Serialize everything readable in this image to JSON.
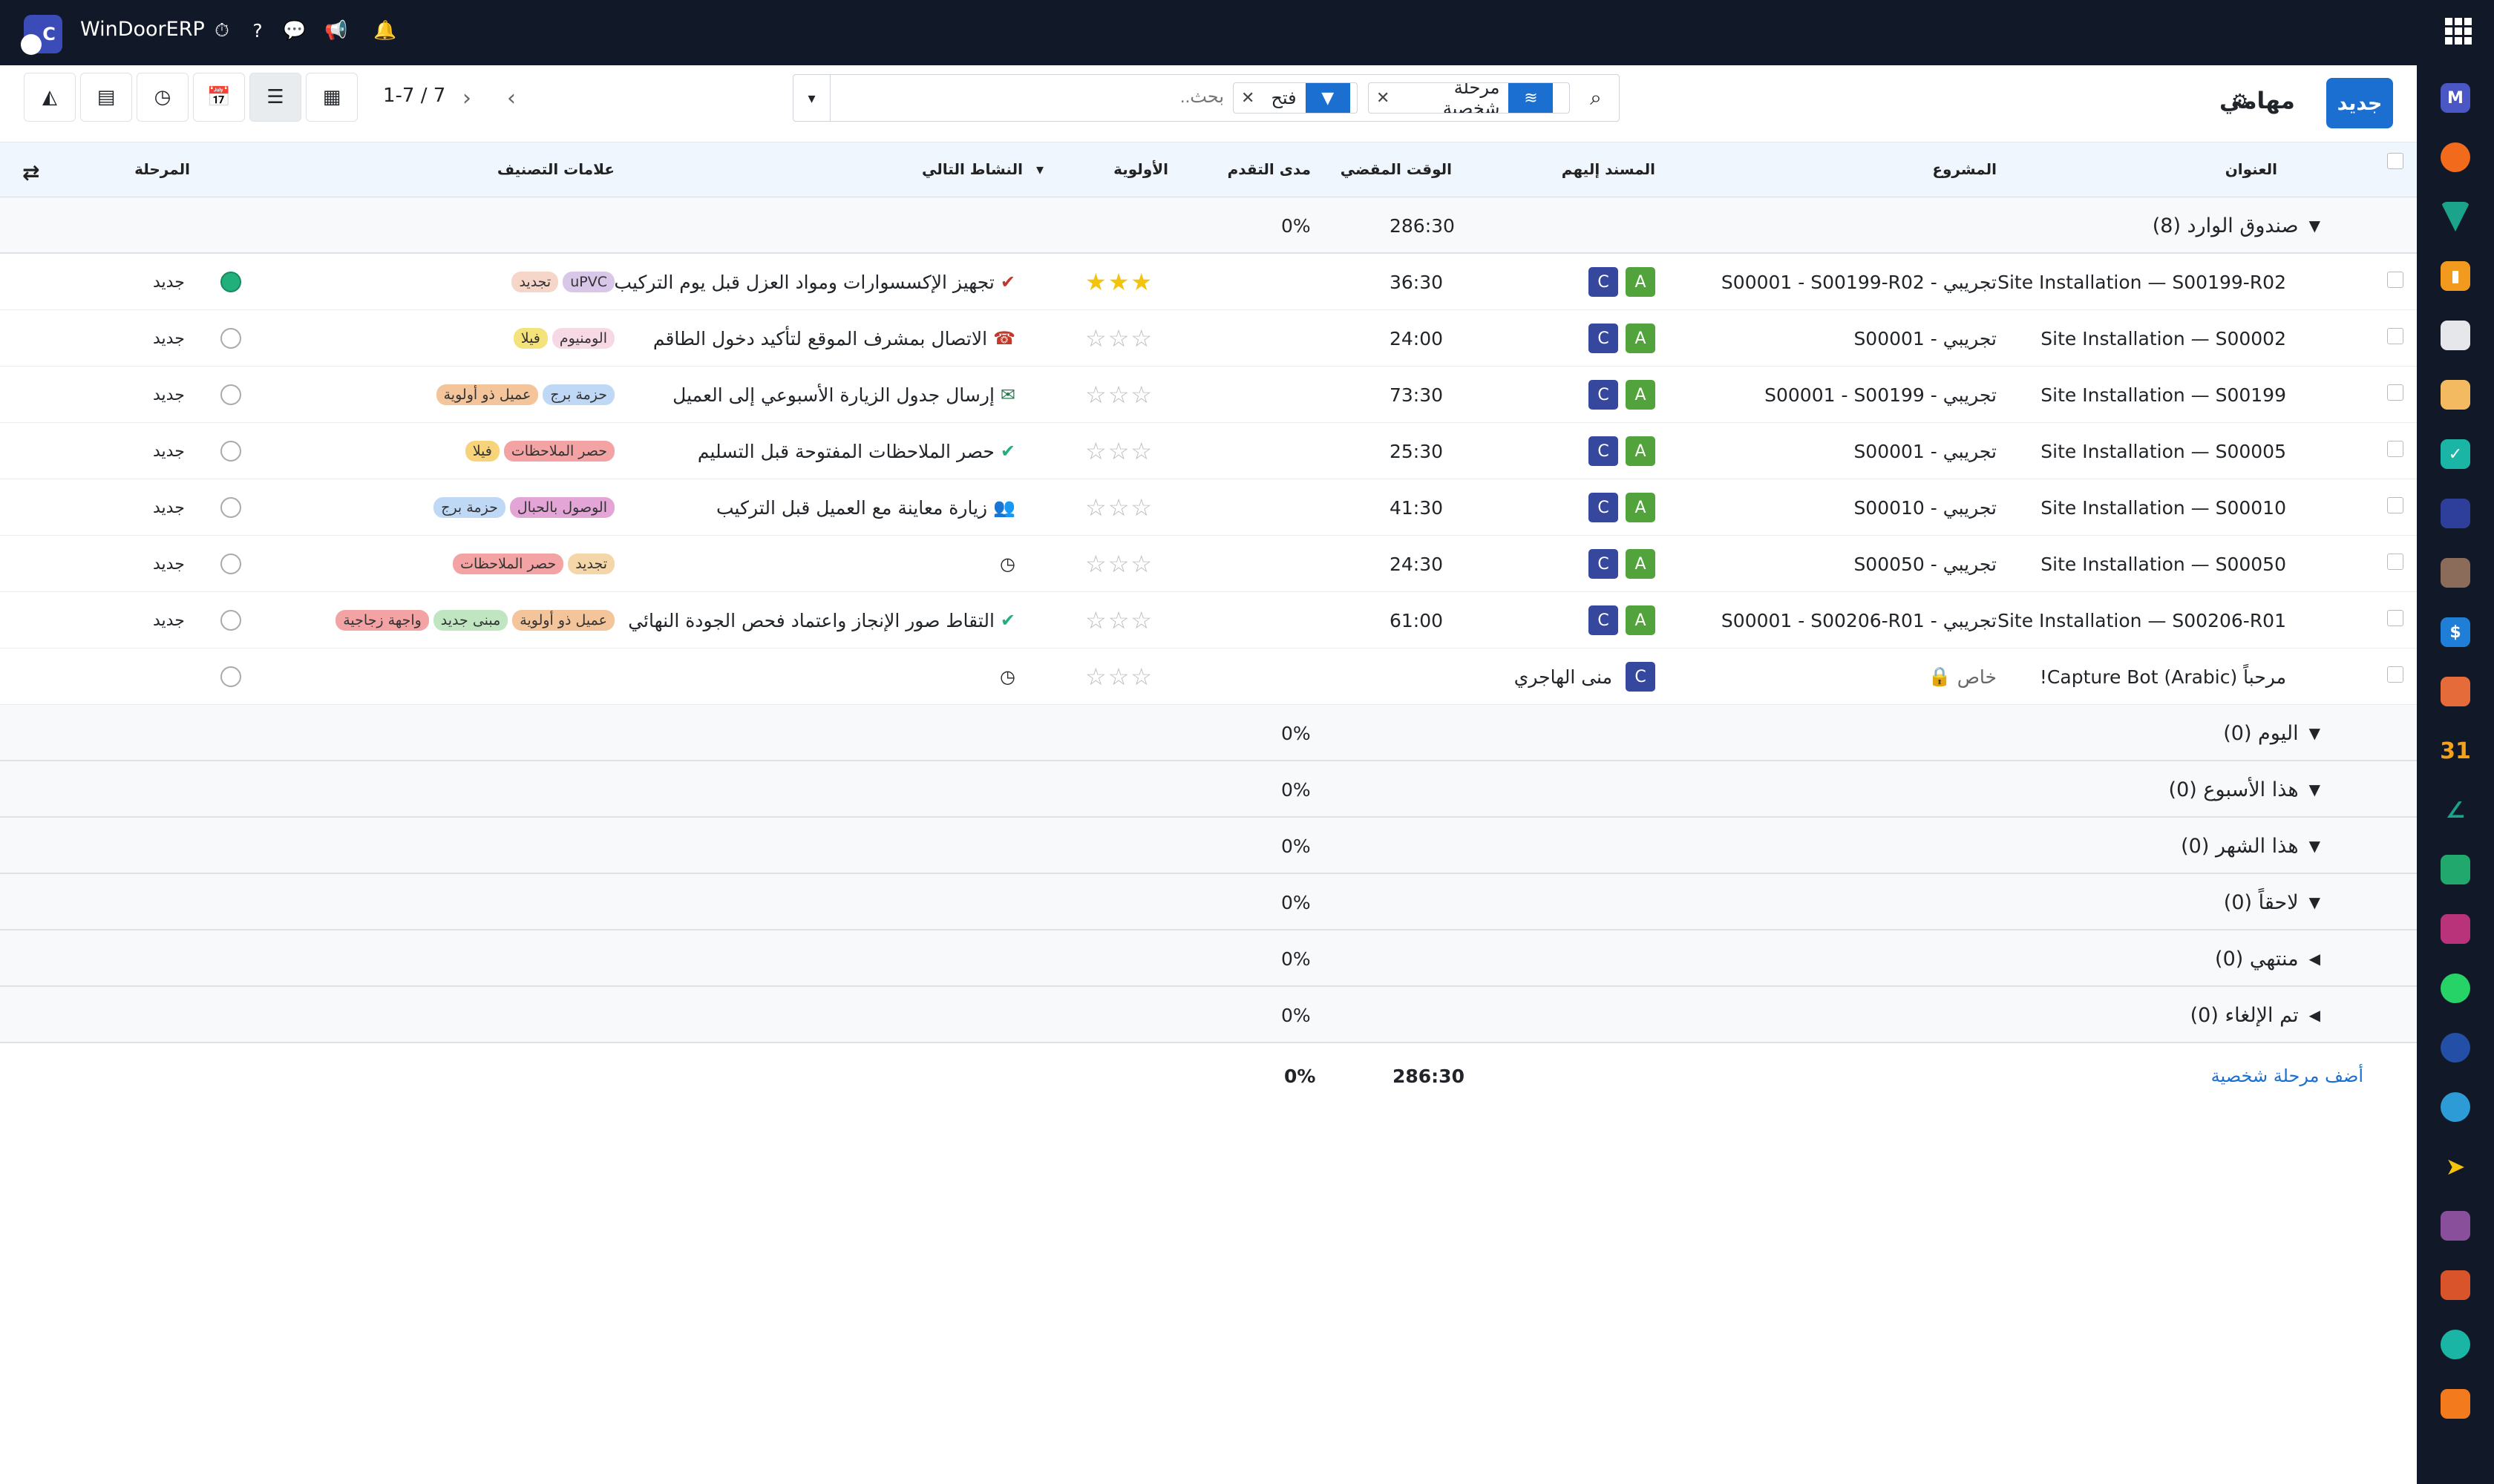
{
  "topbar": {
    "brand": "WinDoorERP",
    "logo_letter": "C"
  },
  "control": {
    "new_button": "جديد",
    "title": "مهامي",
    "facets": [
      {
        "label": "مرحلة شخصية",
        "icon": "layers-icon",
        "color": "#1b6fd1"
      },
      {
        "label": "فتح",
        "icon": "filter-icon",
        "color": "#1b6fd1"
      }
    ],
    "search_placeholder": "بحث...",
    "pager": "1-7 / 7"
  },
  "headers": {
    "title": "العنوان",
    "project": "المشروع",
    "assignees": "المسند إليهم",
    "time": "الوقت المقضي",
    "progress": "مدى التقدم",
    "priority": "الأولوية",
    "next_activity": "النشاط التالي",
    "tags": "علامات التصنيف",
    "stage": "المرحلة"
  },
  "groups": [
    {
      "label": "صندوق الوارد (8)",
      "progress": "0%",
      "time": "286:30",
      "open": true
    },
    {
      "label": "اليوم (0)",
      "progress": "0%"
    },
    {
      "label": "هذا الأسبوع (0)",
      "progress": "0%"
    },
    {
      "label": "هذا الشهر (0)",
      "progress": "0%"
    },
    {
      "label": "لاحقاً (0)",
      "progress": "0%"
    },
    {
      "label": "منتهي (0)",
      "progress": "0%"
    },
    {
      "label": "تم الإلغاء (0)",
      "progress": "0%"
    }
  ],
  "rows": [
    {
      "title": "Site Installation — S00199-R02",
      "project": "تجريبي - S00001 - S00199-R02",
      "time": "36:30",
      "stars": 3,
      "activity": "تجهيز الإكسسوارات ومواد العزل قبل يوم التركيب",
      "act_icon": "check-icon-red",
      "tags": [
        {
          "t": "uPVC",
          "c": "#d9c7ea"
        },
        {
          "t": "تجديد",
          "c": "#f5d6c9"
        }
      ],
      "stage": "جديد",
      "status": "green"
    },
    {
      "title": "Site Installation — S00002",
      "project": "تجريبي - S00001",
      "time": "24:00",
      "stars": 0,
      "activity": "الاتصال بمشرف الموقع لتأكيد دخول الطاقم",
      "act_icon": "phone-icon",
      "tags": [
        {
          "t": "الومنيوم",
          "c": "#f7d9e6"
        },
        {
          "t": "فيلا",
          "c": "#f4e27a"
        }
      ],
      "stage": "جديد",
      "status": "grey"
    },
    {
      "title": "Site Installation — S00199",
      "project": "تجريبي - S00001 - S00199",
      "time": "73:30",
      "stars": 0,
      "activity": "إرسال جدول الزيارة الأسبوعي إلى العميل",
      "act_icon": "envelope-icon",
      "tags": [
        {
          "t": "حزمة برج",
          "c": "#bfd8f6"
        },
        {
          "t": "عميل ذو أولوية",
          "c": "#f4c49a"
        }
      ],
      "stage": "جديد",
      "status": "grey"
    },
    {
      "title": "Site Installation — S00005",
      "project": "تجريبي - S00001",
      "time": "25:30",
      "stars": 0,
      "activity": "حصر الملاحظات المفتوحة قبل التسليم",
      "act_icon": "check-icon",
      "tags": [
        {
          "t": "حصر الملاحظات",
          "c": "#f3a3a3"
        },
        {
          "t": "فيلا",
          "c": "#f7d37a"
        }
      ],
      "stage": "جديد",
      "status": "grey"
    },
    {
      "title": "Site Installation — S00010",
      "project": "تجريبي - S00010",
      "time": "41:30",
      "stars": 0,
      "activity": "زيارة معاينة مع العميل قبل التركيب",
      "act_icon": "users-icon",
      "tags": [
        {
          "t": "الوصول بالحبال",
          "c": "#e3a4d6"
        },
        {
          "t": "حزمة برج",
          "c": "#bfd8f6"
        }
      ],
      "stage": "جديد",
      "status": "grey"
    },
    {
      "title": "Site Installation — S00050",
      "project": "تجريبي - S00050",
      "time": "24:30",
      "stars": 0,
      "activity": "",
      "act_icon": "clock-icon",
      "tags": [
        {
          "t": "تجديد",
          "c": "#f5d6a8"
        },
        {
          "t": "حصر الملاحظات",
          "c": "#f3a3a3"
        }
      ],
      "stage": "جديد",
      "status": "grey"
    },
    {
      "title": "Site Installation — S00206-R01",
      "project": "تجريبي - S00001 - S00206-R01",
      "time": "61:00",
      "stars": 0,
      "activity": "التقاط صور الإنجاز واعتماد فحص الجودة النهائي",
      "act_icon": "check-icon",
      "tags": [
        {
          "t": "عميل ذو أولوية",
          "c": "#f4c49a"
        },
        {
          "t": "مبنى جديد",
          "c": "#bfe6c1"
        },
        {
          "t": "واجهة زجاجية",
          "c": "#f3a3a3"
        }
      ],
      "stage": "جديد",
      "status": "grey"
    },
    {
      "title": "مرحباً (Capture Bot (Arabic!",
      "project": "خاص",
      "time": "",
      "stars": 0,
      "activity": "",
      "act_icon": "clock-icon",
      "tags": [],
      "stage": "",
      "status": "grey",
      "assignee_name": "منى الهاجري"
    }
  ],
  "footer": {
    "add_stage": "أضف مرحلة شخصية",
    "time": "286:30",
    "progress": "0%"
  }
}
